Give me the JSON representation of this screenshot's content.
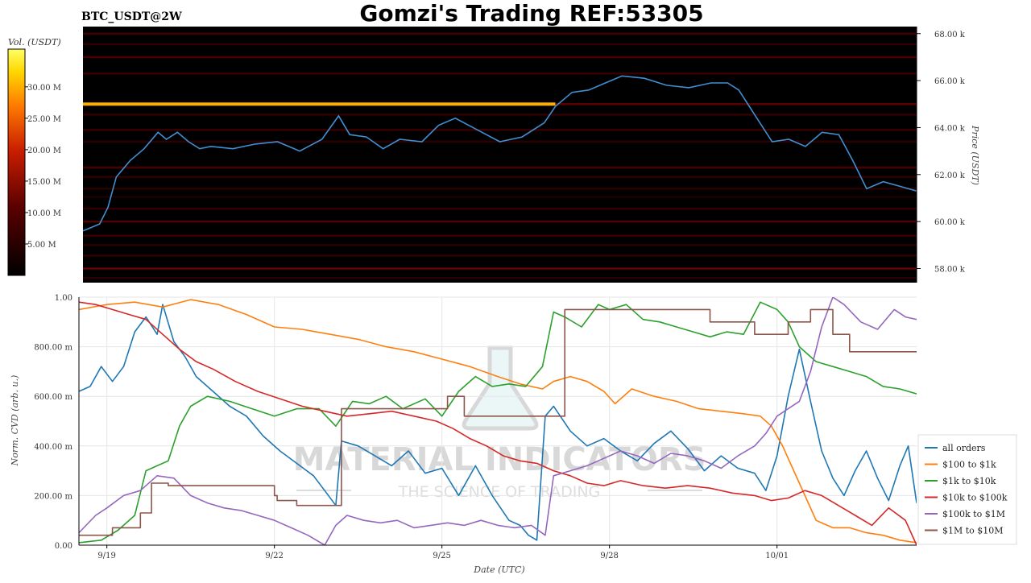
{
  "header": {
    "title": "Gomzi's Trading REF:53305",
    "symbol": "BTC_USDT@2W"
  },
  "watermark": {
    "brand": "MATERIAL INDICATORS",
    "tagline": "THE SCIENCE OF TRADING"
  },
  "colors": {
    "price_line": "#3f8fd2",
    "heatmap_bg": "#000000",
    "heatmap_hot": "#ffffff",
    "grid": "#e6e6e6"
  },
  "chart_data": [
    {
      "type": "heatmap",
      "name": "liquidity-heatmap",
      "colorbar": {
        "label": "Vol. (USDT)",
        "ticks": [
          "5.00 M",
          "10.00 M",
          "15.00 M",
          "20.00 M",
          "25.00 M",
          "30.00 M"
        ],
        "tick_values": [
          5,
          10,
          15,
          20,
          25,
          30
        ],
        "range": [
          0,
          36
        ],
        "unit": "M USDT"
      },
      "ylabel": "Price (USDT)",
      "ylim": [
        57.4,
        68.3
      ],
      "y_ticks": [
        "58.00 k",
        "60.00 k",
        "62.00 k",
        "64.00 k",
        "66.00 k",
        "68.00 k"
      ],
      "y_tick_values": [
        58,
        60,
        62,
        64,
        66,
        68
      ],
      "xlim": [
        18.5,
        33.5
      ],
      "levels": [
        {
          "price": 68.0,
          "vol": 8
        },
        {
          "price": 67.55,
          "vol": 6
        },
        {
          "price": 67.0,
          "vol": 9
        },
        {
          "price": 66.3,
          "vol": 7
        },
        {
          "price": 65.0,
          "vol": 30,
          "x_end": 27.0
        },
        {
          "price": 65.0,
          "vol": 11,
          "x_start": 27.0
        },
        {
          "price": 64.55,
          "vol": 6
        },
        {
          "price": 63.9,
          "vol": 7
        },
        {
          "price": 63.4,
          "vol": 5
        },
        {
          "price": 62.3,
          "vol": 9
        },
        {
          "price": 61.9,
          "vol": 6
        },
        {
          "price": 61.4,
          "vol": 5
        },
        {
          "price": 61.05,
          "vol": 4
        },
        {
          "price": 60.55,
          "vol": 6
        },
        {
          "price": 60.0,
          "vol": 10
        },
        {
          "price": 59.4,
          "vol": 7
        },
        {
          "price": 59.0,
          "vol": 5
        },
        {
          "price": 58.55,
          "vol": 6
        },
        {
          "price": 58.0,
          "vol": 12
        },
        {
          "price": 57.6,
          "vol": 5
        }
      ],
      "price_series": {
        "name": "BTC_USDT",
        "x": [
          18.5,
          18.8,
          18.95,
          19.1,
          19.35,
          19.6,
          19.85,
          20.0,
          20.2,
          20.4,
          20.6,
          20.8,
          21.2,
          21.6,
          22.0,
          22.4,
          22.8,
          23.1,
          23.3,
          23.6,
          23.9,
          24.2,
          24.6,
          24.9,
          25.2,
          25.6,
          26.0,
          26.4,
          26.8,
          27.0,
          27.3,
          27.6,
          27.9,
          28.2,
          28.6,
          29.0,
          29.4,
          29.8,
          30.1,
          30.3,
          30.6,
          30.9,
          31.2,
          31.5,
          31.8,
          32.1,
          32.35,
          32.6,
          32.9,
          33.2,
          33.5
        ],
        "y": [
          59.6,
          59.9,
          60.6,
          61.9,
          62.6,
          63.1,
          63.8,
          63.5,
          63.8,
          63.4,
          63.1,
          63.2,
          63.1,
          63.3,
          63.4,
          63.0,
          63.5,
          64.5,
          63.7,
          63.6,
          63.1,
          63.5,
          63.4,
          64.1,
          64.4,
          63.9,
          63.4,
          63.6,
          64.2,
          64.9,
          65.5,
          65.6,
          65.9,
          66.2,
          66.1,
          65.8,
          65.7,
          65.9,
          65.9,
          65.6,
          64.5,
          63.4,
          63.5,
          63.2,
          63.8,
          63.7,
          62.6,
          61.4,
          61.7,
          61.5,
          61.3
        ]
      }
    },
    {
      "type": "line",
      "name": "normalized-cvd",
      "title": "",
      "xlabel": "Date (UTC)",
      "ylabel": "Norm. CVD (arb. u.)",
      "ylim": [
        0,
        1
      ],
      "xlim": [
        18.5,
        33.5
      ],
      "x_ticks": [
        "9/19",
        "9/22",
        "9/25",
        "9/28",
        "10/01"
      ],
      "x_tick_values": [
        19,
        22,
        25,
        28,
        31
      ],
      "y_ticks": [
        "0.00",
        "200.00 m",
        "400.00 m",
        "600.00 m",
        "800.00 m",
        "1.00"
      ],
      "y_tick_values": [
        0,
        0.2,
        0.4,
        0.6,
        0.8,
        1.0
      ],
      "legend_position": "bottom-right",
      "series": [
        {
          "name": "all orders",
          "color": "#1f77b4",
          "step": false,
          "x": [
            18.5,
            18.7,
            18.9,
            19.1,
            19.3,
            19.5,
            19.7,
            19.9,
            20.0,
            20.2,
            20.4,
            20.6,
            20.9,
            21.2,
            21.5,
            21.8,
            22.1,
            22.4,
            22.7,
            22.9,
            23.1,
            23.2,
            23.5,
            23.8,
            24.1,
            24.4,
            24.7,
            25.0,
            25.3,
            25.6,
            25.9,
            26.2,
            26.4,
            26.55,
            26.7,
            26.85,
            27.0,
            27.3,
            27.6,
            27.9,
            28.2,
            28.5,
            28.8,
            29.1,
            29.4,
            29.7,
            30.0,
            30.3,
            30.6,
            30.8,
            31.0,
            31.2,
            31.4,
            31.6,
            31.8,
            32.0,
            32.2,
            32.4,
            32.6,
            32.8,
            33.0,
            33.2,
            33.35,
            33.5
          ],
          "y": [
            0.62,
            0.64,
            0.72,
            0.66,
            0.72,
            0.86,
            0.92,
            0.85,
            0.97,
            0.82,
            0.76,
            0.68,
            0.62,
            0.56,
            0.52,
            0.44,
            0.38,
            0.33,
            0.28,
            0.22,
            0.16,
            0.42,
            0.4,
            0.36,
            0.32,
            0.38,
            0.29,
            0.31,
            0.2,
            0.32,
            0.2,
            0.1,
            0.08,
            0.04,
            0.02,
            0.52,
            0.56,
            0.46,
            0.4,
            0.43,
            0.38,
            0.34,
            0.41,
            0.46,
            0.39,
            0.3,
            0.36,
            0.31,
            0.29,
            0.22,
            0.36,
            0.6,
            0.79,
            0.58,
            0.38,
            0.27,
            0.2,
            0.3,
            0.38,
            0.27,
            0.18,
            0.32,
            0.4,
            0.17
          ]
        },
        {
          "name": "$100 to $1k",
          "color": "#ff7f0e",
          "step": false,
          "x": [
            18.5,
            19.0,
            19.5,
            20.0,
            20.5,
            21.0,
            21.5,
            22.0,
            22.5,
            23.0,
            23.5,
            24.0,
            24.5,
            25.0,
            25.5,
            26.0,
            26.4,
            26.8,
            27.0,
            27.3,
            27.6,
            27.9,
            28.1,
            28.4,
            28.8,
            29.2,
            29.6,
            30.0,
            30.4,
            30.7,
            30.9,
            31.1,
            31.4,
            31.7,
            32.0,
            32.3,
            32.6,
            32.9,
            33.2,
            33.5
          ],
          "y": [
            0.95,
            0.97,
            0.98,
            0.96,
            0.99,
            0.97,
            0.93,
            0.88,
            0.87,
            0.85,
            0.83,
            0.8,
            0.78,
            0.75,
            0.72,
            0.68,
            0.65,
            0.63,
            0.66,
            0.68,
            0.66,
            0.62,
            0.57,
            0.63,
            0.6,
            0.58,
            0.55,
            0.54,
            0.53,
            0.52,
            0.48,
            0.4,
            0.25,
            0.1,
            0.07,
            0.07,
            0.05,
            0.04,
            0.02,
            0.01
          ]
        },
        {
          "name": "$1k to $10k",
          "color": "#2ca02c",
          "step": false,
          "x": [
            18.5,
            18.9,
            19.2,
            19.5,
            19.7,
            19.9,
            20.1,
            20.3,
            20.5,
            20.8,
            21.2,
            21.6,
            22.0,
            22.4,
            22.8,
            23.1,
            23.4,
            23.7,
            24.0,
            24.3,
            24.7,
            25.0,
            25.3,
            25.6,
            25.9,
            26.2,
            26.5,
            26.8,
            27.0,
            27.2,
            27.5,
            27.8,
            28.0,
            28.3,
            28.6,
            28.9,
            29.2,
            29.5,
            29.8,
            30.1,
            30.4,
            30.7,
            31.0,
            31.2,
            31.4,
            31.7,
            32.0,
            32.3,
            32.6,
            32.9,
            33.2,
            33.5
          ],
          "y": [
            0.01,
            0.02,
            0.06,
            0.12,
            0.3,
            0.32,
            0.34,
            0.48,
            0.56,
            0.6,
            0.58,
            0.55,
            0.52,
            0.55,
            0.55,
            0.48,
            0.58,
            0.57,
            0.6,
            0.55,
            0.59,
            0.52,
            0.62,
            0.68,
            0.64,
            0.65,
            0.64,
            0.72,
            0.94,
            0.92,
            0.88,
            0.97,
            0.95,
            0.97,
            0.91,
            0.9,
            0.88,
            0.86,
            0.84,
            0.86,
            0.85,
            0.98,
            0.95,
            0.9,
            0.8,
            0.74,
            0.72,
            0.7,
            0.68,
            0.64,
            0.63,
            0.61
          ]
        },
        {
          "name": "$10k to $100k",
          "color": "#d62728",
          "step": false,
          "x": [
            18.5,
            18.8,
            19.1,
            19.4,
            19.7,
            20.0,
            20.3,
            20.6,
            20.9,
            21.3,
            21.7,
            22.1,
            22.5,
            22.9,
            23.3,
            23.7,
            24.1,
            24.5,
            24.9,
            25.2,
            25.5,
            25.8,
            26.1,
            26.4,
            26.7,
            27.0,
            27.3,
            27.6,
            27.9,
            28.2,
            28.6,
            29.0,
            29.4,
            29.8,
            30.2,
            30.6,
            30.9,
            31.2,
            31.5,
            31.8,
            32.1,
            32.4,
            32.7,
            33.0,
            33.3,
            33.5
          ],
          "y": [
            0.98,
            0.97,
            0.95,
            0.93,
            0.91,
            0.85,
            0.79,
            0.74,
            0.71,
            0.66,
            0.62,
            0.59,
            0.56,
            0.54,
            0.52,
            0.53,
            0.54,
            0.52,
            0.5,
            0.47,
            0.43,
            0.4,
            0.36,
            0.34,
            0.33,
            0.3,
            0.28,
            0.25,
            0.24,
            0.26,
            0.24,
            0.23,
            0.24,
            0.23,
            0.21,
            0.2,
            0.18,
            0.19,
            0.22,
            0.2,
            0.16,
            0.12,
            0.08,
            0.15,
            0.1,
            0.0
          ]
        },
        {
          "name": "$100k to $1M",
          "color": "#9467bd",
          "step": false,
          "x": [
            18.5,
            18.8,
            19.0,
            19.3,
            19.6,
            19.9,
            20.2,
            20.5,
            20.8,
            21.1,
            21.4,
            21.7,
            22.0,
            22.3,
            22.6,
            22.9,
            23.1,
            23.3,
            23.6,
            23.9,
            24.2,
            24.5,
            24.8,
            25.1,
            25.4,
            25.7,
            26.0,
            26.3,
            26.6,
            26.85,
            27.0,
            27.3,
            27.6,
            27.9,
            28.2,
            28.5,
            28.8,
            29.1,
            29.4,
            29.7,
            30.0,
            30.3,
            30.6,
            30.8,
            31.0,
            31.2,
            31.4,
            31.6,
            31.8,
            32.0,
            32.2,
            32.5,
            32.8,
            33.1,
            33.3,
            33.5
          ],
          "y": [
            0.05,
            0.12,
            0.15,
            0.2,
            0.22,
            0.28,
            0.27,
            0.2,
            0.17,
            0.15,
            0.14,
            0.12,
            0.1,
            0.07,
            0.04,
            0.0,
            0.08,
            0.12,
            0.1,
            0.09,
            0.1,
            0.07,
            0.08,
            0.09,
            0.08,
            0.1,
            0.08,
            0.07,
            0.08,
            0.04,
            0.28,
            0.3,
            0.32,
            0.35,
            0.38,
            0.36,
            0.33,
            0.37,
            0.36,
            0.34,
            0.31,
            0.36,
            0.4,
            0.45,
            0.52,
            0.55,
            0.58,
            0.7,
            0.88,
            1.0,
            0.97,
            0.9,
            0.87,
            0.95,
            0.92,
            0.91
          ]
        },
        {
          "name": "$1M to $10M",
          "color": "#8c564b",
          "step": true,
          "x": [
            18.5,
            19.1,
            19.6,
            19.8,
            20.1,
            22.0,
            22.05,
            22.4,
            23.2,
            25.1,
            25.4,
            27.2,
            29.8,
            30.6,
            31.2,
            31.6,
            32.0,
            32.3,
            33.5
          ],
          "y": [
            0.04,
            0.07,
            0.13,
            0.25,
            0.24,
            0.2,
            0.18,
            0.16,
            0.55,
            0.6,
            0.52,
            0.95,
            0.9,
            0.85,
            0.9,
            0.95,
            0.85,
            0.78,
            0.78
          ]
        }
      ]
    }
  ]
}
